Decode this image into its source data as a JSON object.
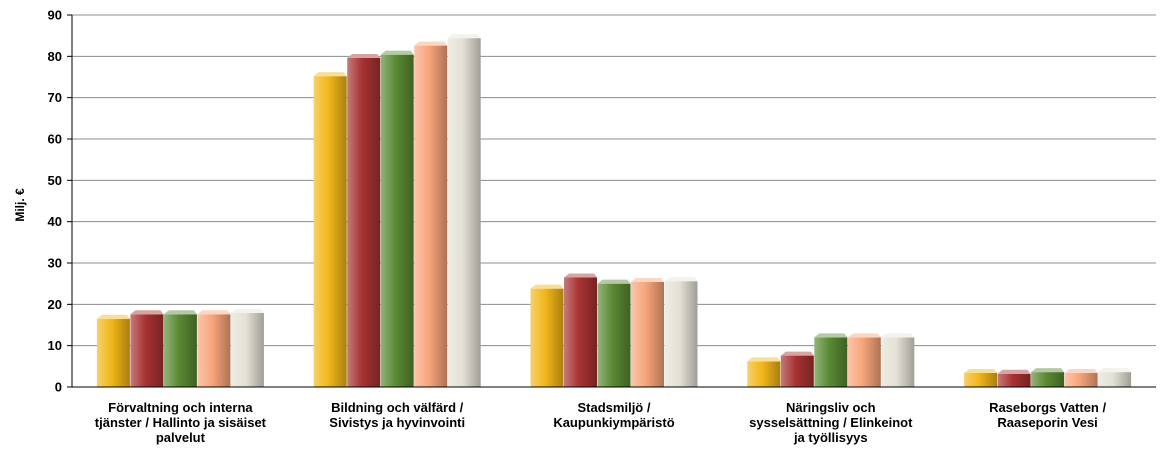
{
  "chart_data": {
    "type": "bar",
    "ylabel": "Milj. €",
    "ylim": [
      0,
      90
    ],
    "yticks": [
      "0",
      "10",
      "20",
      "30",
      "40",
      "50",
      "60",
      "70",
      "80",
      "90"
    ],
    "grid": true,
    "categories": [
      [
        "Förvaltning och interna",
        "tjänster / Hallinto ja sisäiset",
        "palvelut"
      ],
      [
        "Bildning och välfärd /",
        "Sivistys ja hyvinvointi"
      ],
      [
        "Stadsmiljö /",
        "Kaupunkiympäristö"
      ],
      [
        "Näringsliv och",
        "sysselsättning / Elinkeinot",
        "ja työllisyys"
      ],
      [
        "Raseborgs Vatten /",
        "Raaseporin Vesi"
      ]
    ],
    "series": [
      {
        "color": "#f2b619",
        "values": [
          16.5,
          75.2,
          23.8,
          6.2,
          3.4
        ]
      },
      {
        "color": "#a83232",
        "values": [
          17.6,
          79.6,
          26.5,
          7.6,
          3.2
        ]
      },
      {
        "color": "#5a8a34",
        "values": [
          17.6,
          80.4,
          25.0,
          12.0,
          3.6
        ]
      },
      {
        "color": "#f7a57a",
        "values": [
          17.6,
          82.6,
          25.4,
          12.0,
          3.4
        ]
      },
      {
        "color": "#e4e1d6",
        "values": [
          17.9,
          84.4,
          25.6,
          12.0,
          3.6
        ]
      }
    ]
  }
}
